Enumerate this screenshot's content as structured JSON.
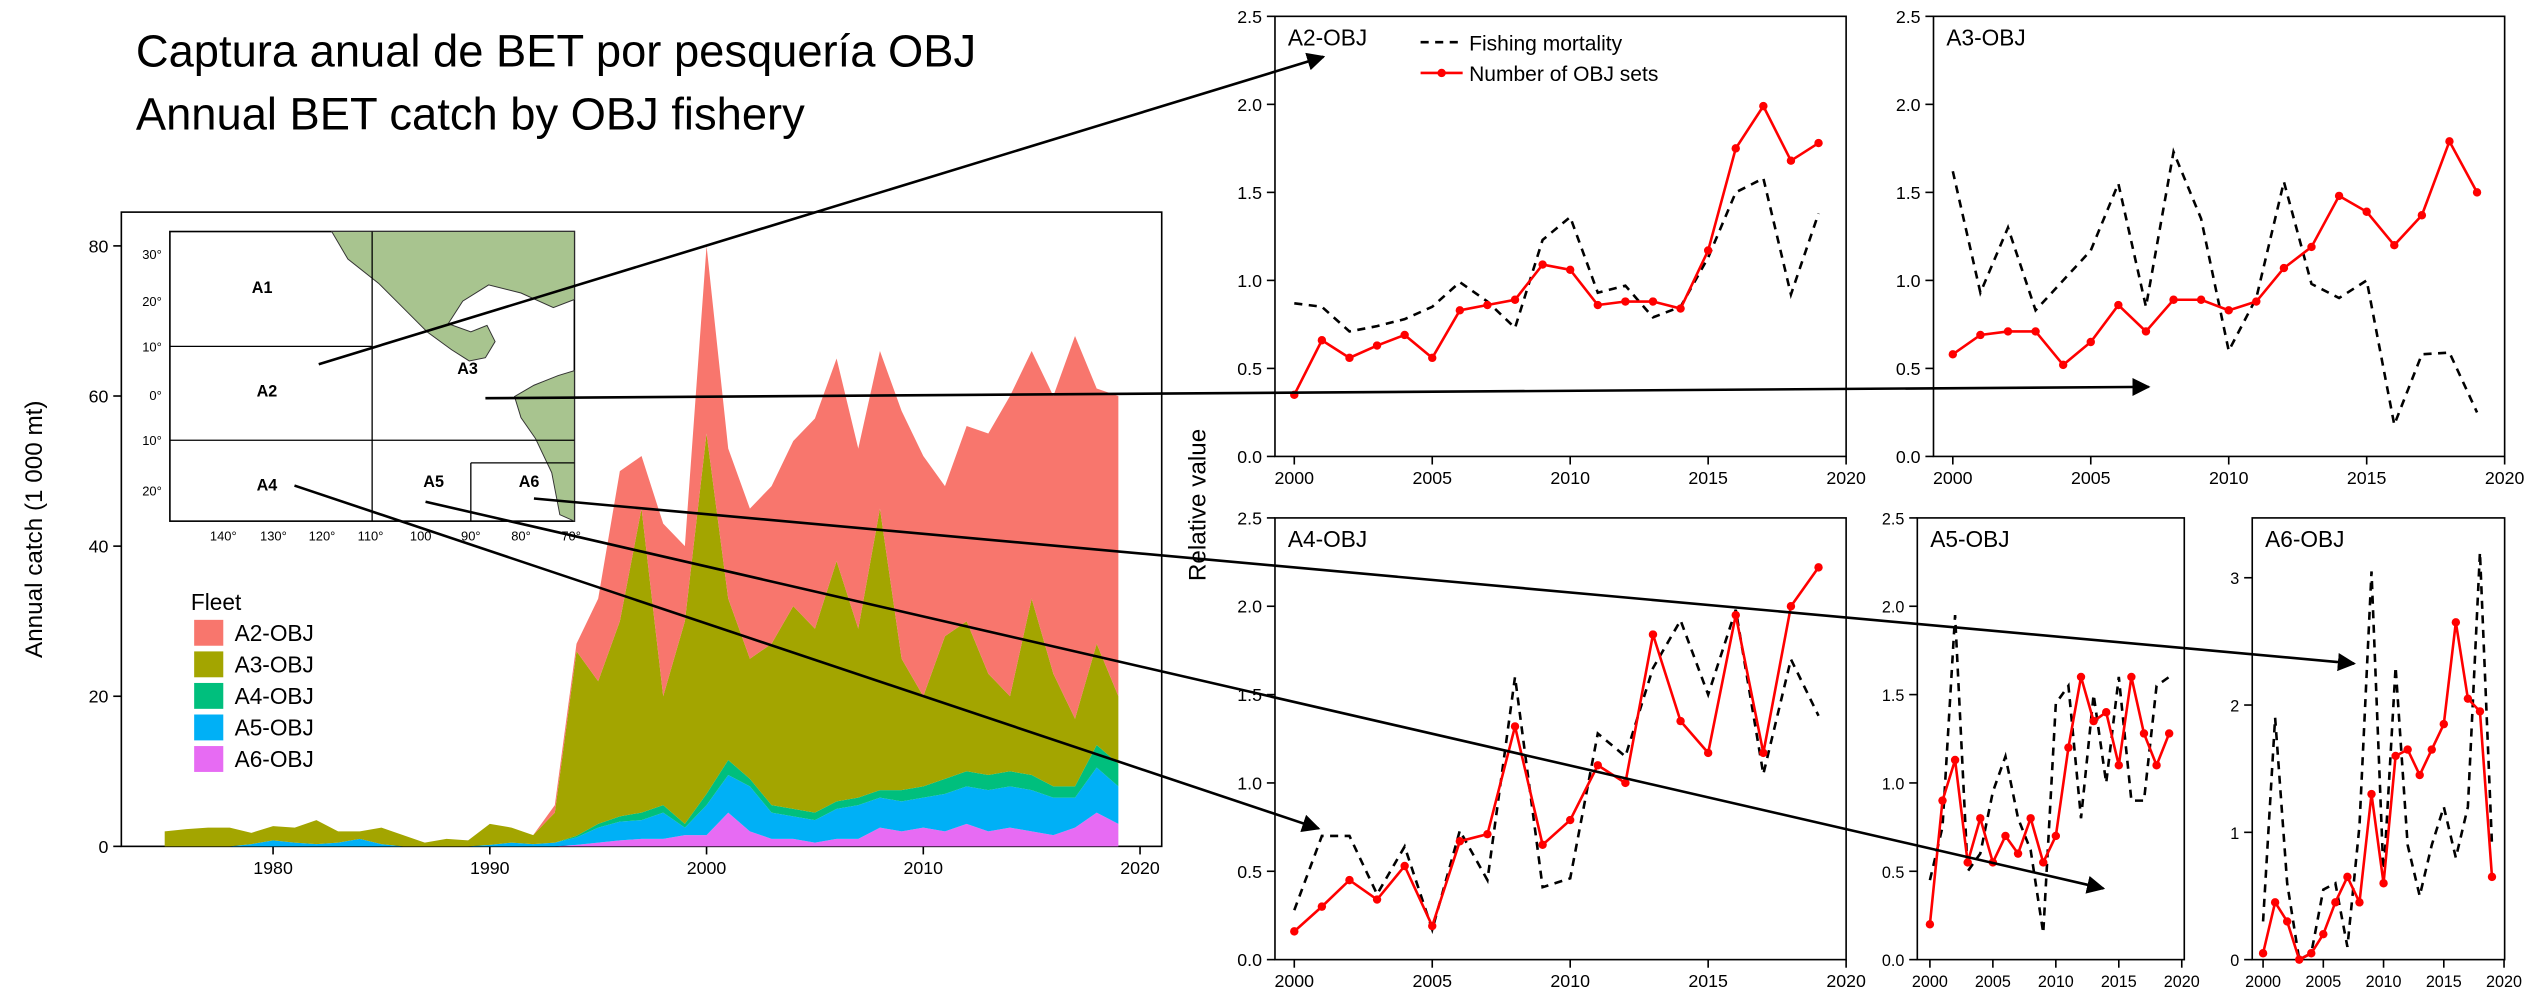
{
  "title": [
    "Captura anual de BET por pesquería OBJ",
    "Annual BET catch by OBJ fishery"
  ],
  "ylabel_shared": "Relative value",
  "map": {
    "regions": [
      "A1",
      "A2",
      "A3",
      "A4",
      "A5",
      "A6"
    ],
    "lat_labels": [
      "30°",
      "20°",
      "10°",
      "0°",
      "10°",
      "20°"
    ],
    "lon_labels": [
      "140°",
      "130°",
      "120°",
      "110°",
      "100",
      "90°",
      "80°",
      "70°"
    ]
  },
  "chart_data": [
    {
      "type": "area",
      "ylabel": "Annual catch (1 000 mt)",
      "legend_title": "Fleet",
      "x": [
        1975,
        1976,
        1977,
        1978,
        1979,
        1980,
        1981,
        1982,
        1983,
        1984,
        1985,
        1986,
        1987,
        1988,
        1989,
        1990,
        1991,
        1992,
        1993,
        1994,
        1995,
        1996,
        1997,
        1998,
        1999,
        2000,
        2001,
        2002,
        2003,
        2004,
        2005,
        2006,
        2007,
        2008,
        2009,
        2010,
        2011,
        2012,
        2013,
        2014,
        2015,
        2016,
        2017,
        2018,
        2019
      ],
      "xlim": [
        1973,
        2021
      ],
      "xticks": [
        1980,
        1990,
        2000,
        2010,
        2020
      ],
      "ylim": [
        0,
        84.5
      ],
      "yticks": [
        0,
        20,
        40,
        60,
        80
      ],
      "series": [
        {
          "name": "A2-OBJ",
          "color": "#f8766d",
          "values": [
            0,
            0,
            0,
            0,
            0,
            0,
            0,
            0,
            0,
            0,
            0,
            0,
            0,
            0,
            0,
            0,
            0,
            0,
            1,
            1,
            11,
            20,
            7,
            23,
            10,
            25,
            20,
            20,
            21,
            22,
            28,
            27,
            24,
            21,
            33,
            32,
            20,
            26,
            32,
            40,
            33,
            37,
            51,
            34,
            40
          ]
        },
        {
          "name": "A3-OBJ",
          "color": "#a3a500",
          "values": [
            2,
            2.3,
            2.5,
            2.5,
            1.5,
            1.9,
            2,
            3.2,
            1.5,
            1,
            2.2,
            1.5,
            0.5,
            1,
            0.8,
            2.8,
            2,
            1.2,
            4,
            24.6,
            19,
            26,
            40.5,
            14.5,
            27,
            48,
            21.5,
            16,
            21.5,
            27,
            24.5,
            32,
            22.5,
            37.5,
            17.5,
            12,
            19,
            20,
            13.5,
            10,
            23.5,
            15,
            9,
            13.5,
            9
          ]
        },
        {
          "name": "A4-OBJ",
          "color": "#00bf7d",
          "values": [
            0,
            0,
            0,
            0,
            0,
            0,
            0,
            0,
            0,
            0,
            0,
            0,
            0,
            0,
            0,
            0,
            0,
            0,
            0,
            0.2,
            0.5,
            0.7,
            1,
            1,
            0.5,
            1.5,
            2,
            1,
            1,
            1,
            1,
            1,
            1,
            1,
            1.5,
            1.5,
            2,
            2,
            2,
            2,
            2,
            1.5,
            1.5,
            3,
            3
          ]
        },
        {
          "name": "A5-OBJ",
          "color": "#00b0f6",
          "values": [
            0,
            0,
            0,
            0,
            0.3,
            0.8,
            0.5,
            0.3,
            0.5,
            1,
            0.3,
            0,
            0,
            0,
            0,
            0.2,
            0.5,
            0.3,
            0.5,
            1,
            2,
            2.5,
            2.5,
            3.5,
            1,
            4,
            5,
            6,
            3.5,
            3,
            3,
            4,
            4.5,
            4,
            4,
            4,
            5,
            5,
            5.5,
            5.5,
            5.5,
            5,
            4,
            6,
            5
          ]
        },
        {
          "name": "A6-OBJ",
          "color": "#e76bf3",
          "values": [
            0,
            0,
            0,
            0,
            0,
            0,
            0,
            0,
            0,
            0,
            0,
            0,
            0,
            0,
            0,
            0,
            0,
            0,
            0,
            0.2,
            0.5,
            0.8,
            1,
            1,
            1.5,
            1.5,
            4.5,
            2,
            1,
            1,
            0.5,
            1,
            1,
            2.5,
            2,
            2.5,
            2,
            3,
            2,
            2.5,
            2,
            1.5,
            2.5,
            4.5,
            3
          ]
        }
      ]
    },
    {
      "type": "line",
      "title": "A2-OBJ",
      "x": [
        2000,
        2001,
        2002,
        2003,
        2004,
        2005,
        2006,
        2007,
        2008,
        2009,
        2010,
        2011,
        2012,
        2013,
        2014,
        2015,
        2016,
        2017,
        2018,
        2019
      ],
      "xlim": [
        1999.3,
        2020
      ],
      "xticks": [
        2000,
        2005,
        2010,
        2015,
        2020
      ],
      "ylim": [
        0,
        2.5
      ],
      "yticks": [
        {
          "value": 0,
          "label": "0.0"
        },
        {
          "value": 0.5,
          "label": "0.5"
        },
        {
          "value": 1,
          "label": "1.0"
        },
        {
          "value": 1.5,
          "label": "1.5"
        },
        {
          "value": 2,
          "label": "2.0"
        },
        {
          "value": 2.5,
          "label": "2.5"
        }
      ],
      "legend": true,
      "series": [
        {
          "name": "Fishing mortality",
          "color": "#000000",
          "style": "dashed",
          "values": [
            0.87,
            0.85,
            0.71,
            0.74,
            0.78,
            0.85,
            0.99,
            0.88,
            0.73,
            1.23,
            1.36,
            0.93,
            0.97,
            0.79,
            0.85,
            1.13,
            1.5,
            1.58,
            0.92,
            1.38
          ]
        },
        {
          "name": "Number of OBJ sets",
          "color": "#ff0000",
          "style": "points",
          "values": [
            0.35,
            0.66,
            0.56,
            0.63,
            0.69,
            0.56,
            0.83,
            0.86,
            0.89,
            1.09,
            1.06,
            0.86,
            0.88,
            0.88,
            0.84,
            1.17,
            1.75,
            1.99,
            1.68,
            1.78
          ]
        }
      ]
    },
    {
      "type": "line",
      "title": "A3-OBJ",
      "x": [
        2000,
        2001,
        2002,
        2003,
        2004,
        2005,
        2006,
        2007,
        2008,
        2009,
        2010,
        2011,
        2012,
        2013,
        2014,
        2015,
        2016,
        2017,
        2018,
        2019
      ],
      "xlim": [
        1999.3,
        2020
      ],
      "xticks": [
        2000,
        2005,
        2010,
        2015,
        2020
      ],
      "ylim": [
        0,
        2.5
      ],
      "yticks": [
        {
          "value": 0,
          "label": "0.0"
        },
        {
          "value": 0.5,
          "label": "0.5"
        },
        {
          "value": 1,
          "label": "1.0"
        },
        {
          "value": 1.5,
          "label": "1.5"
        },
        {
          "value": 2,
          "label": "2.0"
        },
        {
          "value": 2.5,
          "label": "2.5"
        }
      ],
      "series": [
        {
          "color": "#000000",
          "style": "dashed",
          "values": [
            1.62,
            0.93,
            1.3,
            0.83,
            1.0,
            1.17,
            1.55,
            0.85,
            1.73,
            1.35,
            0.6,
            0.9,
            1.56,
            0.98,
            0.9,
            1.0,
            0.18,
            0.58,
            0.59,
            0.25
          ]
        },
        {
          "color": "#ff0000",
          "style": "points",
          "values": [
            0.58,
            0.69,
            0.71,
            0.71,
            0.52,
            0.65,
            0.86,
            0.71,
            0.89,
            0.89,
            0.83,
            0.88,
            1.07,
            1.19,
            1.48,
            1.39,
            1.2,
            1.37,
            1.79,
            1.5
          ]
        }
      ]
    },
    {
      "type": "line",
      "title": "A4-OBJ",
      "x": [
        2000,
        2001,
        2002,
        2003,
        2004,
        2005,
        2006,
        2007,
        2008,
        2009,
        2010,
        2011,
        2012,
        2013,
        2014,
        2015,
        2016,
        2017,
        2018,
        2019
      ],
      "xlim": [
        1999.3,
        2020
      ],
      "xticks": [
        2000,
        2005,
        2010,
        2015,
        2020
      ],
      "ylim": [
        0,
        2.5
      ],
      "yticks": [
        {
          "value": 0,
          "label": "0.0"
        },
        {
          "value": 0.5,
          "label": "0.5"
        },
        {
          "value": 1,
          "label": "1.0"
        },
        {
          "value": 1.5,
          "label": "1.5"
        },
        {
          "value": 2,
          "label": "2.0"
        },
        {
          "value": 2.5,
          "label": "2.5"
        }
      ],
      "series": [
        {
          "color": "#000000",
          "style": "dashed",
          "values": [
            0.28,
            0.7,
            0.7,
            0.37,
            0.64,
            0.17,
            0.73,
            0.45,
            1.6,
            0.41,
            0.46,
            1.28,
            1.15,
            1.65,
            1.92,
            1.5,
            1.98,
            1.05,
            1.7,
            1.38
          ]
        },
        {
          "color": "#ff0000",
          "style": "points",
          "values": [
            0.16,
            0.3,
            0.45,
            0.34,
            0.53,
            0.19,
            0.67,
            0.71,
            1.32,
            0.65,
            0.79,
            1.1,
            1.0,
            1.84,
            1.35,
            1.17,
            1.95,
            1.17,
            2.0,
            2.22
          ]
        }
      ]
    },
    {
      "type": "line",
      "title": "A5-OBJ",
      "x": [
        2000,
        2001,
        2002,
        2003,
        2004,
        2005,
        2006,
        2007,
        2008,
        2009,
        2010,
        2011,
        2012,
        2013,
        2014,
        2015,
        2016,
        2017,
        2018,
        2019
      ],
      "xlim": [
        1999,
        2020.2
      ],
      "xticks": [
        2000,
        2005,
        2010,
        2015,
        2020
      ],
      "ylim": [
        0,
        2.5
      ],
      "yticks": [
        {
          "value": 0,
          "label": "0.0"
        },
        {
          "value": 0.5,
          "label": "0.5"
        },
        {
          "value": 1,
          "label": "1.0"
        },
        {
          "value": 1.5,
          "label": "1.5"
        },
        {
          "value": 2,
          "label": "2.0"
        },
        {
          "value": 2.5,
          "label": "2.5"
        }
      ],
      "series": [
        {
          "color": "#000000",
          "style": "dashed",
          "values": [
            0.45,
            0.75,
            1.95,
            0.5,
            0.6,
            0.95,
            1.15,
            0.8,
            0.62,
            0.15,
            1.45,
            1.55,
            0.8,
            1.5,
            1.0,
            1.6,
            0.9,
            0.9,
            1.55,
            1.6
          ]
        },
        {
          "color": "#ff0000",
          "style": "points",
          "values": [
            0.2,
            0.9,
            1.13,
            0.55,
            0.8,
            0.55,
            0.7,
            0.6,
            0.8,
            0.55,
            0.7,
            1.2,
            1.6,
            1.35,
            1.4,
            1.1,
            1.6,
            1.28,
            1.1,
            1.28
          ]
        }
      ]
    },
    {
      "type": "line",
      "title": "A6-OBJ",
      "x": [
        2000,
        2001,
        2002,
        2003,
        2004,
        2005,
        2006,
        2007,
        2008,
        2009,
        2010,
        2011,
        2012,
        2013,
        2014,
        2015,
        2016,
        2017,
        2018,
        2019
      ],
      "xlim": [
        1999.1,
        2020.05
      ],
      "xticks": [
        2000,
        2005,
        2010,
        2015,
        2020
      ],
      "ylim": [
        0,
        3.47
      ],
      "yticks": [
        0,
        1,
        2,
        3
      ],
      "series": [
        {
          "color": "#000000",
          "style": "dashed",
          "values": [
            0.3,
            1.9,
            0.6,
            0,
            0.05,
            0.55,
            0.6,
            0.1,
            1.05,
            3.05,
            0.65,
            2.3,
            0.9,
            0.5,
            0.9,
            1.2,
            0.8,
            1.2,
            3.2,
            0.9
          ]
        },
        {
          "color": "#ff0000",
          "style": "points",
          "values": [
            0.05,
            0.45,
            0.3,
            0,
            0.05,
            0.2,
            0.45,
            0.65,
            0.45,
            1.3,
            0.6,
            1.6,
            1.65,
            1.45,
            1.65,
            1.85,
            2.65,
            2.05,
            1.95,
            0.65
          ]
        }
      ]
    }
  ]
}
